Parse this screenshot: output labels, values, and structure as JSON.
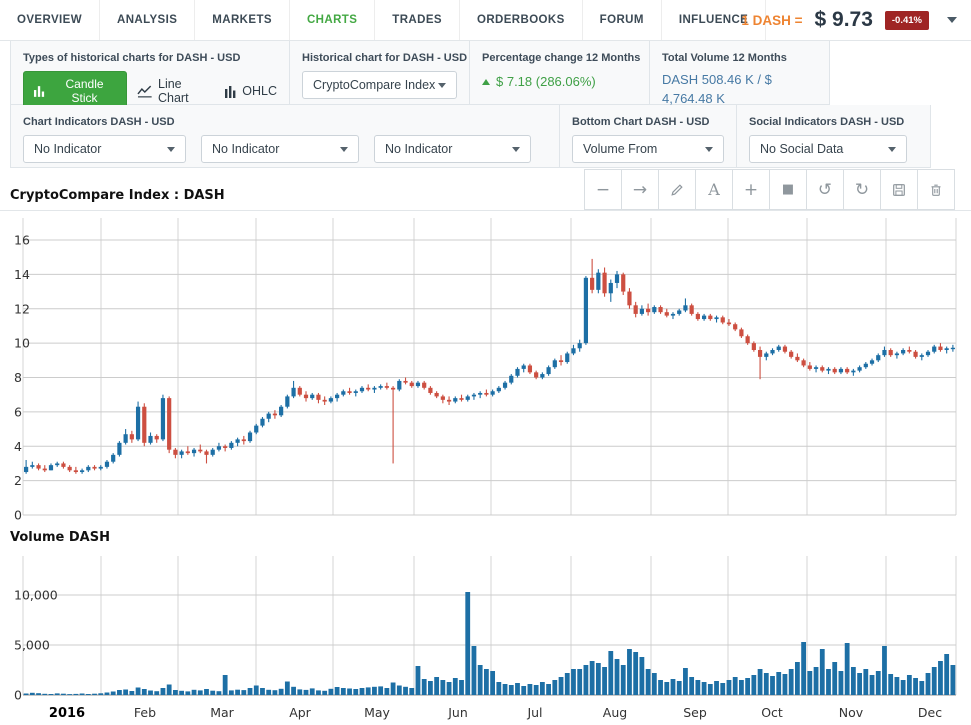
{
  "nav": {
    "tabs": [
      {
        "label": "OVERVIEW",
        "active": false
      },
      {
        "label": "ANALYSIS",
        "active": false
      },
      {
        "label": "MARKETS",
        "active": false
      },
      {
        "label": "CHARTS",
        "active": true
      },
      {
        "label": "TRADES",
        "active": false
      },
      {
        "label": "ORDERBOOKS",
        "active": false
      },
      {
        "label": "FORUM",
        "active": false
      },
      {
        "label": "INFLUENCE",
        "active": false
      }
    ],
    "price": {
      "pair_label": "1 DASH =",
      "value": "$ 9.73",
      "change": "-0.41%"
    }
  },
  "controls": {
    "chart_types": {
      "title": "Types of historical charts for DASH - USD",
      "buttons": [
        {
          "label": "Candle Stick",
          "icon": "candlestick-chart-icon",
          "active": true
        },
        {
          "label": "Line Chart",
          "icon": "line-chart-icon",
          "active": false
        },
        {
          "label": "OHLC",
          "icon": "ohlc-chart-icon",
          "active": false
        }
      ]
    },
    "historical": {
      "title": "Historical chart for DASH - USD",
      "selected": "CryptoCompare Index"
    },
    "percentage_change": {
      "title": "Percentage change 12 Months",
      "value": "$ 7.18 (286.06%)",
      "direction": "up",
      "color": "#3fa046"
    },
    "total_volume": {
      "title": "Total Volume 12 Months",
      "value": "DASH 508.46 K / $ 4,764.48 K"
    },
    "indicators": {
      "title": "Chart Indicators DASH - USD",
      "selects": [
        "No Indicator",
        "No Indicator",
        "No Indicator"
      ]
    },
    "bottom_chart": {
      "title": "Bottom Chart DASH - USD",
      "selected": "Volume From"
    },
    "social": {
      "title": "Social Indicators DASH - USD",
      "selected": "No Social Data"
    }
  },
  "toolbar": {
    "buttons": [
      "minus",
      "arrow-right",
      "pencil",
      "text",
      "plus",
      "square",
      "undo",
      "redo",
      "save",
      "trash"
    ]
  },
  "chart_data": [
    {
      "type": "candlestick",
      "title": "CryptoCompare Index : DASH",
      "ylim": [
        0,
        16
      ],
      "yticks": [
        0,
        2,
        4,
        6,
        8,
        10,
        12,
        14,
        16
      ],
      "x_labels": [
        "2016",
        "Feb",
        "Mar",
        "Apr",
        "May",
        "Jun",
        "Jul",
        "Aug",
        "Sep",
        "Oct",
        "Nov",
        "Dec"
      ],
      "grid": true,
      "colors": {
        "up": "#1d6fa5",
        "down": "#cd4f41"
      },
      "ohlc": [
        [
          2.5,
          3.2,
          2.4,
          2.8
        ],
        [
          2.8,
          3.1,
          2.7,
          2.9
        ],
        [
          2.9,
          3.0,
          2.6,
          2.7
        ],
        [
          2.7,
          2.9,
          2.5,
          2.6
        ],
        [
          2.6,
          3.0,
          2.6,
          2.9
        ],
        [
          2.9,
          3.1,
          2.8,
          3.0
        ],
        [
          3.0,
          3.1,
          2.7,
          2.8
        ],
        [
          2.8,
          2.9,
          2.5,
          2.6
        ],
        [
          2.6,
          2.8,
          2.4,
          2.5
        ],
        [
          2.5,
          2.7,
          2.4,
          2.6
        ],
        [
          2.6,
          2.9,
          2.5,
          2.8
        ],
        [
          2.8,
          2.9,
          2.6,
          2.7
        ],
        [
          2.7,
          2.9,
          2.6,
          2.8
        ],
        [
          2.8,
          3.2,
          2.7,
          3.1
        ],
        [
          3.1,
          3.6,
          3.0,
          3.5
        ],
        [
          3.5,
          4.3,
          3.4,
          4.2
        ],
        [
          4.2,
          5.0,
          4.1,
          4.7
        ],
        [
          4.7,
          4.9,
          4.2,
          4.4
        ],
        [
          4.4,
          6.6,
          4.3,
          6.3
        ],
        [
          6.3,
          6.5,
          4.0,
          4.2
        ],
        [
          4.2,
          4.8,
          4.1,
          4.6
        ],
        [
          4.6,
          4.7,
          4.2,
          4.4
        ],
        [
          4.4,
          7.0,
          4.3,
          6.8
        ],
        [
          6.8,
          6.9,
          3.6,
          3.8
        ],
        [
          3.8,
          3.9,
          3.3,
          3.5
        ],
        [
          3.5,
          3.8,
          3.3,
          3.7
        ],
        [
          3.7,
          4.0,
          3.5,
          3.6
        ],
        [
          3.6,
          3.9,
          3.4,
          3.8
        ],
        [
          3.8,
          4.1,
          3.6,
          3.7
        ],
        [
          3.7,
          3.8,
          3.0,
          3.5
        ],
        [
          3.5,
          3.9,
          3.4,
          3.8
        ],
        [
          3.8,
          4.2,
          3.7,
          4.0
        ],
        [
          4.0,
          4.1,
          3.7,
          3.9
        ],
        [
          3.9,
          4.3,
          3.8,
          4.2
        ],
        [
          4.2,
          4.5,
          4.0,
          4.4
        ],
        [
          4.4,
          4.6,
          4.1,
          4.3
        ],
        [
          4.3,
          4.9,
          4.2,
          4.8
        ],
        [
          4.8,
          5.3,
          4.7,
          5.2
        ],
        [
          5.2,
          5.7,
          5.1,
          5.6
        ],
        [
          5.6,
          6.0,
          5.4,
          5.9
        ],
        [
          5.9,
          6.1,
          5.6,
          5.8
        ],
        [
          5.8,
          6.4,
          5.7,
          6.3
        ],
        [
          6.3,
          7.0,
          6.2,
          6.9
        ],
        [
          6.9,
          7.8,
          6.8,
          7.4
        ],
        [
          7.4,
          7.5,
          6.9,
          7.0
        ],
        [
          7.0,
          7.2,
          6.6,
          6.8
        ],
        [
          6.8,
          7.1,
          6.7,
          7.0
        ],
        [
          7.0,
          7.1,
          6.5,
          6.7
        ],
        [
          6.7,
          6.9,
          6.4,
          6.6
        ],
        [
          6.6,
          6.9,
          6.5,
          6.8
        ],
        [
          6.8,
          7.1,
          6.6,
          7.0
        ],
        [
          7.0,
          7.3,
          6.9,
          7.2
        ],
        [
          7.2,
          7.4,
          7.0,
          7.1
        ],
        [
          7.1,
          7.3,
          6.9,
          7.2
        ],
        [
          7.2,
          7.5,
          7.1,
          7.4
        ],
        [
          7.4,
          7.6,
          7.2,
          7.3
        ],
        [
          7.3,
          7.5,
          7.1,
          7.4
        ],
        [
          7.4,
          7.6,
          7.3,
          7.5
        ],
        [
          7.5,
          7.7,
          7.3,
          7.4
        ],
        [
          7.4,
          7.5,
          3.0,
          7.3
        ],
        [
          7.3,
          7.9,
          7.2,
          7.8
        ],
        [
          7.8,
          8.0,
          7.6,
          7.7
        ],
        [
          7.7,
          7.8,
          7.4,
          7.5
        ],
        [
          7.5,
          7.8,
          7.4,
          7.7
        ],
        [
          7.7,
          7.8,
          7.3,
          7.4
        ],
        [
          7.4,
          7.5,
          7.0,
          7.1
        ],
        [
          7.1,
          7.2,
          6.8,
          6.9
        ],
        [
          6.9,
          7.0,
          6.5,
          6.7
        ],
        [
          6.7,
          6.9,
          6.4,
          6.6
        ],
        [
          6.6,
          6.9,
          6.5,
          6.8
        ],
        [
          6.8,
          7.0,
          6.6,
          6.7
        ],
        [
          6.7,
          7.0,
          6.6,
          6.9
        ],
        [
          6.9,
          7.1,
          6.7,
          7.0
        ],
        [
          7.0,
          7.2,
          6.8,
          7.1
        ],
        [
          7.1,
          7.3,
          6.9,
          7.0
        ],
        [
          7.0,
          7.3,
          6.9,
          7.2
        ],
        [
          7.2,
          7.5,
          7.1,
          7.4
        ],
        [
          7.4,
          7.8,
          7.3,
          7.7
        ],
        [
          7.7,
          8.2,
          7.6,
          8.1
        ],
        [
          8.1,
          8.6,
          8.0,
          8.5
        ],
        [
          8.5,
          8.8,
          8.3,
          8.7
        ],
        [
          8.7,
          8.8,
          8.2,
          8.3
        ],
        [
          8.3,
          8.4,
          7.9,
          8.0
        ],
        [
          8.0,
          8.3,
          7.9,
          8.2
        ],
        [
          8.2,
          8.7,
          8.1,
          8.6
        ],
        [
          8.6,
          9.1,
          8.5,
          9.0
        ],
        [
          9.0,
          9.3,
          8.7,
          8.9
        ],
        [
          8.9,
          9.5,
          8.8,
          9.4
        ],
        [
          9.4,
          9.9,
          9.3,
          9.7
        ],
        [
          9.7,
          10.2,
          9.5,
          10.0
        ],
        [
          10.0,
          13.9,
          9.9,
          13.8
        ],
        [
          13.8,
          14.9,
          12.9,
          13.1
        ],
        [
          13.1,
          14.3,
          12.9,
          14.1
        ],
        [
          14.1,
          14.4,
          12.7,
          12.9
        ],
        [
          12.9,
          13.7,
          12.4,
          13.5
        ],
        [
          13.5,
          14.2,
          13.2,
          14.0
        ],
        [
          14.0,
          14.1,
          12.8,
          13.0
        ],
        [
          13.0,
          13.2,
          12.0,
          12.2
        ],
        [
          12.2,
          12.4,
          11.5,
          11.7
        ],
        [
          11.7,
          12.2,
          11.6,
          12.0
        ],
        [
          12.0,
          12.3,
          11.6,
          11.8
        ],
        [
          11.8,
          12.2,
          11.7,
          12.1
        ],
        [
          12.1,
          12.2,
          11.7,
          11.8
        ],
        [
          11.8,
          12.0,
          11.5,
          11.6
        ],
        [
          11.6,
          11.8,
          11.4,
          11.7
        ],
        [
          11.7,
          12.0,
          11.6,
          11.9
        ],
        [
          11.9,
          12.6,
          11.8,
          12.2
        ],
        [
          12.2,
          12.3,
          11.6,
          11.7
        ],
        [
          11.7,
          11.8,
          11.3,
          11.4
        ],
        [
          11.4,
          11.7,
          11.3,
          11.6
        ],
        [
          11.6,
          11.7,
          11.3,
          11.4
        ],
        [
          11.4,
          11.6,
          11.2,
          11.5
        ],
        [
          11.5,
          11.6,
          11.1,
          11.2
        ],
        [
          11.2,
          11.4,
          11.0,
          11.1
        ],
        [
          11.1,
          11.2,
          10.7,
          10.8
        ],
        [
          10.8,
          10.9,
          10.3,
          10.4
        ],
        [
          10.4,
          10.5,
          9.9,
          10.0
        ],
        [
          10.0,
          10.1,
          9.5,
          9.6
        ],
        [
          9.6,
          9.8,
          7.9,
          9.2
        ],
        [
          9.2,
          9.5,
          9.0,
          9.4
        ],
        [
          9.4,
          9.7,
          9.3,
          9.6
        ],
        [
          9.6,
          9.9,
          9.5,
          9.8
        ],
        [
          9.8,
          9.9,
          9.4,
          9.5
        ],
        [
          9.5,
          9.6,
          9.1,
          9.2
        ],
        [
          9.2,
          9.4,
          8.9,
          9.0
        ],
        [
          9.0,
          9.1,
          8.6,
          8.7
        ],
        [
          8.7,
          8.9,
          8.4,
          8.5
        ],
        [
          8.5,
          8.7,
          8.3,
          8.6
        ],
        [
          8.6,
          8.7,
          8.3,
          8.4
        ],
        [
          8.4,
          8.6,
          8.2,
          8.5
        ],
        [
          8.5,
          8.6,
          8.2,
          8.3
        ],
        [
          8.3,
          8.6,
          8.2,
          8.5
        ],
        [
          8.5,
          8.6,
          8.2,
          8.3
        ],
        [
          8.3,
          8.5,
          8.1,
          8.4
        ],
        [
          8.4,
          8.7,
          8.3,
          8.6
        ],
        [
          8.6,
          8.9,
          8.5,
          8.8
        ],
        [
          8.8,
          9.1,
          8.7,
          9.0
        ],
        [
          9.0,
          9.4,
          8.9,
          9.3
        ],
        [
          9.3,
          9.8,
          9.2,
          9.6
        ],
        [
          9.6,
          9.7,
          9.2,
          9.3
        ],
        [
          9.3,
          9.5,
          9.1,
          9.4
        ],
        [
          9.4,
          9.7,
          9.3,
          9.6
        ],
        [
          9.6,
          9.8,
          9.4,
          9.5
        ],
        [
          9.5,
          9.6,
          9.1,
          9.2
        ],
        [
          9.2,
          9.4,
          9.0,
          9.3
        ],
        [
          9.3,
          9.6,
          9.2,
          9.5
        ],
        [
          9.5,
          9.9,
          9.4,
          9.8
        ],
        [
          9.8,
          10.0,
          9.5,
          9.6
        ],
        [
          9.6,
          9.8,
          9.4,
          9.7
        ],
        [
          9.7,
          9.9,
          9.5,
          9.73
        ]
      ]
    },
    {
      "type": "bar",
      "title": "Volume DASH",
      "ylim": [
        0,
        12000
      ],
      "yticks": [
        0,
        5000,
        10000
      ],
      "ytick_labels": [
        "0",
        "5,000",
        "10,000"
      ],
      "bar_color": "#1d6fa5",
      "values": [
        150,
        220,
        180,
        120,
        100,
        160,
        130,
        90,
        110,
        150,
        100,
        130,
        170,
        250,
        350,
        500,
        550,
        400,
        750,
        600,
        450,
        380,
        700,
        1050,
        500,
        420,
        360,
        520,
        460,
        600,
        430,
        380,
        2000,
        460,
        530,
        490,
        700,
        950,
        700,
        520,
        480,
        620,
        1350,
        820,
        560,
        510,
        660,
        460,
        420,
        620,
        800,
        700,
        650,
        600,
        700,
        760,
        820,
        860,
        700,
        1250,
        950,
        820,
        700,
        2900,
        1600,
        1400,
        1800,
        1500,
        1300,
        1700,
        1500,
        10300,
        4900,
        3000,
        2600,
        2400,
        1300,
        1100,
        1000,
        1200,
        900,
        1100,
        1000,
        1300,
        1100,
        1500,
        1800,
        2200,
        2600,
        2600,
        3000,
        3400,
        3200,
        2800,
        4400,
        3600,
        3000,
        4600,
        4300,
        3800,
        2600,
        2200,
        1500,
        1300,
        1600,
        1400,
        2700,
        1800,
        1500,
        1300,
        1100,
        1400,
        1200,
        1500,
        1800,
        1500,
        1700,
        2000,
        2600,
        2200,
        1900,
        2300,
        2100,
        2600,
        3300,
        5300,
        2400,
        2800,
        4600,
        2600,
        3300,
        2400,
        5200,
        2800,
        2200,
        2600,
        2000,
        2400,
        4900,
        2100,
        1800,
        1500,
        2000,
        1700,
        1400,
        2200,
        2800,
        3400,
        4100,
        3000
      ]
    }
  ]
}
